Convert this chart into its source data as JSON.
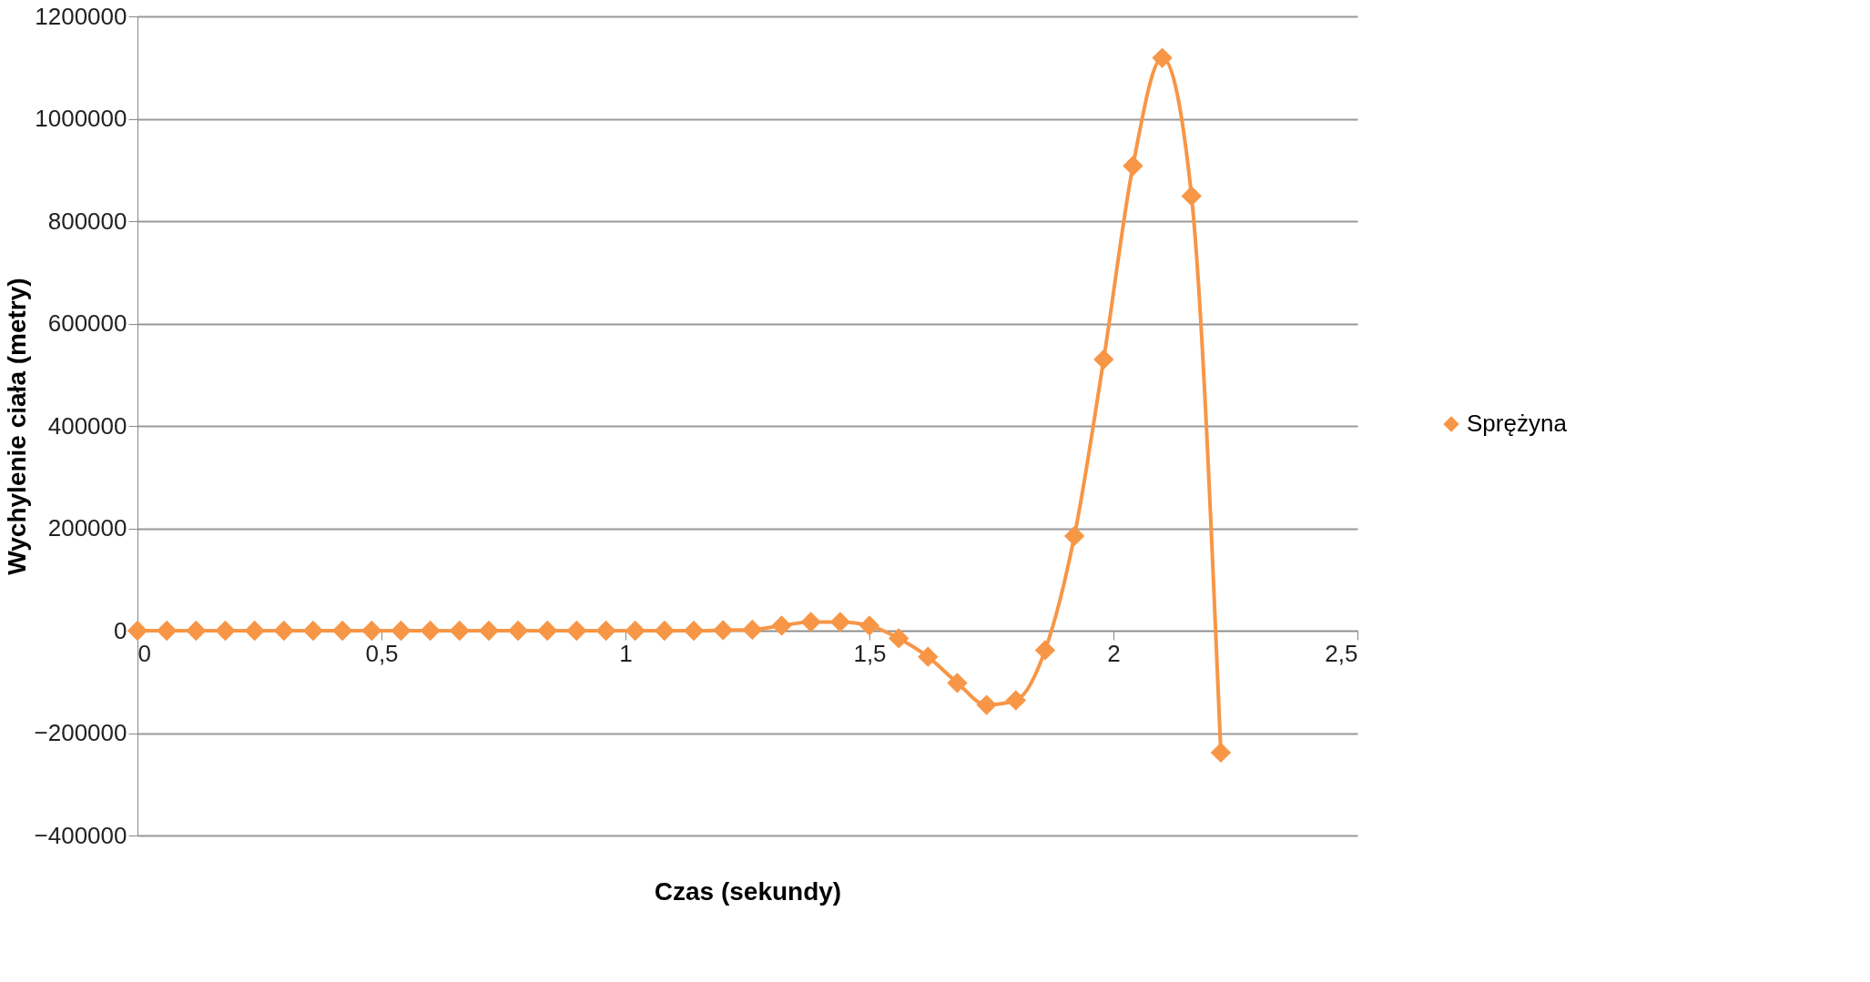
{
  "chart_data": {
    "type": "line",
    "xlabel": "Czas (sekundy)",
    "ylabel": "Wychylenie ciała (metry)",
    "x": [
      0,
      0.06,
      0.12,
      0.18,
      0.24,
      0.3,
      0.36,
      0.42,
      0.48,
      0.54,
      0.6,
      0.66,
      0.72,
      0.78,
      0.84,
      0.9,
      0.96,
      1.02,
      1.08,
      1.14,
      1.2,
      1.26,
      1.32,
      1.38,
      1.44,
      1.5,
      1.56,
      1.62,
      1.68,
      1.74,
      1.8,
      1.86,
      1.92,
      1.98,
      2.04,
      2.1,
      2.16,
      2.22
    ],
    "series": [
      {
        "name": "Sprężyna",
        "color": "#f79646",
        "values": [
          0,
          0,
          0,
          0,
          0,
          0,
          0,
          0,
          0,
          0,
          0,
          0,
          0,
          0,
          0,
          0,
          0,
          0,
          0,
          0,
          1000,
          2000,
          10000,
          17000,
          17000,
          10000,
          -15000,
          -51000,
          -102000,
          -145000,
          -136000,
          -38000,
          185000,
          530000,
          908000,
          1119000,
          849000,
          -238000
        ]
      }
    ],
    "xlim": [
      0,
      2.5
    ],
    "xticks": [
      {
        "value": 0,
        "label": "0"
      },
      {
        "value": 0.5,
        "label": "0,5"
      },
      {
        "value": 1,
        "label": "1"
      },
      {
        "value": 1.5,
        "label": "1,5"
      },
      {
        "value": 2,
        "label": "2"
      },
      {
        "value": 2.5,
        "label": "2,5"
      }
    ],
    "ylim": [
      -400000,
      1200000
    ],
    "yticks": [
      -400000,
      -200000,
      0,
      200000,
      400000,
      600000,
      800000,
      1000000,
      1200000
    ],
    "grid": "y",
    "legend": "right",
    "marker": "diamond",
    "line_style": "solid"
  }
}
